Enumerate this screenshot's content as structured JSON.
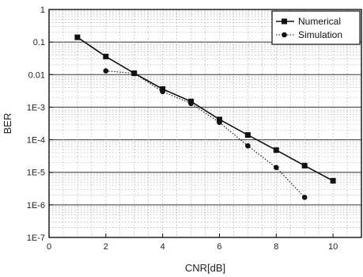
{
  "chart_data": {
    "type": "line",
    "xlabel": "CNR[dB]",
    "ylabel": "BER",
    "xlim": [
      0,
      11
    ],
    "ylim": [
      1e-07,
      1
    ],
    "yscale": "log",
    "grid": true,
    "legend_position": "top-right",
    "x_ticks": [
      0,
      2,
      4,
      6,
      8,
      10
    ],
    "y_ticks": [
      {
        "value": 1,
        "label": "1"
      },
      {
        "value": 0.1,
        "label": "0.1"
      },
      {
        "value": 0.01,
        "label": "0.01"
      },
      {
        "value": 0.001,
        "label": "1E-3"
      },
      {
        "value": 0.0001,
        "label": "1E-4"
      },
      {
        "value": 1e-05,
        "label": "1E-5"
      },
      {
        "value": 1e-06,
        "label": "1E-6"
      },
      {
        "value": 1e-07,
        "label": "1E-7"
      }
    ],
    "series": [
      {
        "name": "Numerical",
        "marker": "square",
        "line_style": "solid",
        "x": [
          1,
          2,
          3,
          4,
          5,
          6,
          7,
          8,
          9,
          10
        ],
        "y": [
          0.14,
          0.036,
          0.011,
          0.0036,
          0.0015,
          0.00042,
          0.00014,
          4.8e-05,
          1.6e-05,
          5.5e-06
        ]
      },
      {
        "name": "Simulation",
        "marker": "circle",
        "line_style": "dotted",
        "x": [
          2,
          3,
          4,
          5,
          6,
          7,
          8,
          9
        ],
        "y": [
          0.013,
          0.011,
          0.003,
          0.0013,
          0.00034,
          6.5e-05,
          1.4e-05,
          1.7e-06
        ]
      }
    ]
  }
}
